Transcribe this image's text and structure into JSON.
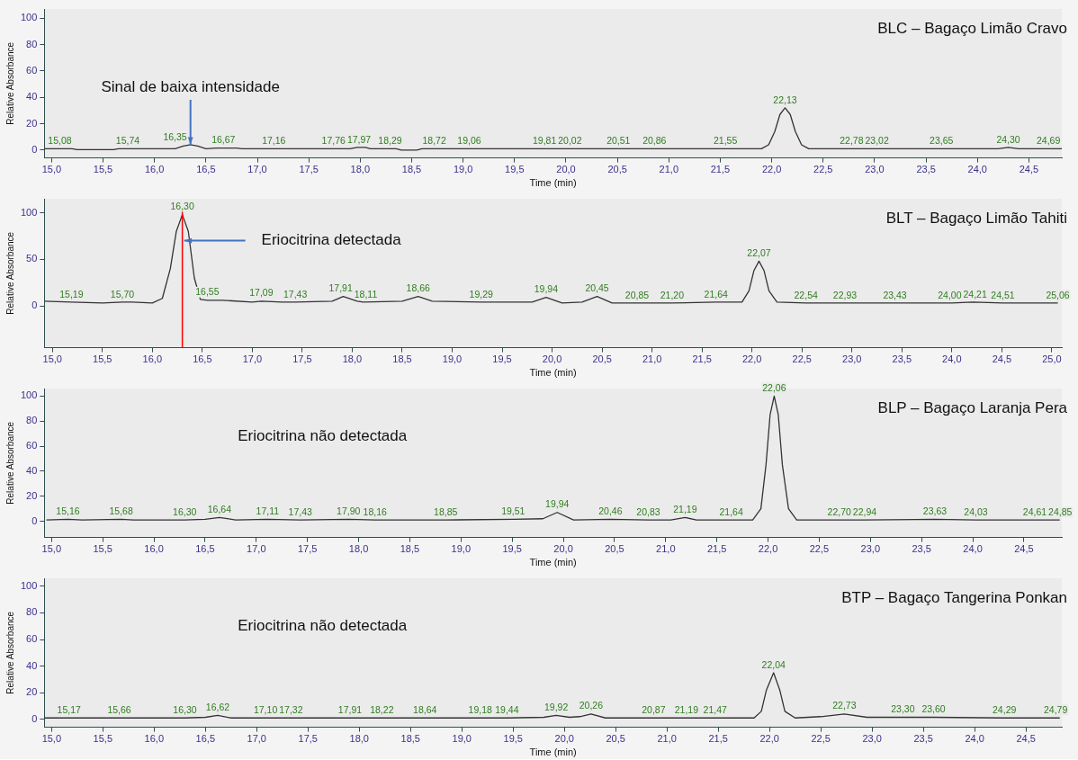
{
  "chart_data": [
    {
      "type": "line",
      "title": "BLC – Bagaço Limão Cravo",
      "xlabel": "Time (min)",
      "ylabel": "Relative Absorbance",
      "grid": false,
      "legend": false,
      "xlim": [
        14.93,
        24.82
      ],
      "xticks": [
        {
          "value": 15,
          "label": "15,0"
        },
        {
          "value": 15.5,
          "label": "15,5"
        },
        {
          "value": 16,
          "label": "16,0"
        },
        {
          "value": 16.5,
          "label": "16,5"
        },
        {
          "value": 17,
          "label": "17,0"
        },
        {
          "value": 17.5,
          "label": "17,5"
        },
        {
          "value": 18,
          "label": "18,0"
        },
        {
          "value": 18.5,
          "label": "18,5"
        },
        {
          "value": 19,
          "label": "19,0"
        },
        {
          "value": 19.5,
          "label": "19,5"
        },
        {
          "value": 20,
          "label": "20,0"
        },
        {
          "value": 20.5,
          "label": "20,5"
        },
        {
          "value": 21,
          "label": "21,0"
        },
        {
          "value": 21.5,
          "label": "21,5"
        },
        {
          "value": 22,
          "label": "22,0"
        },
        {
          "value": 22.5,
          "label": "22,5"
        },
        {
          "value": 23,
          "label": "23,0"
        },
        {
          "value": 23.5,
          "label": "23,5"
        },
        {
          "value": 24,
          "label": "24,0"
        },
        {
          "value": 24.5,
          "label": "24,5"
        }
      ],
      "ylim": [
        -6,
        107
      ],
      "yticks": [
        0,
        20,
        40,
        60,
        80,
        100
      ],
      "annotations": [
        {
          "text": "Sinal de baixa intensidade",
          "x": 16.35,
          "y": 4
        },
        {
          "text": "15,08",
          "x": 15.08,
          "y": 1
        },
        {
          "text": "15,74",
          "x": 15.74,
          "y": 1
        },
        {
          "text": "16,35",
          "x": 16.35,
          "y": 4
        },
        {
          "text": "16,67",
          "x": 16.67,
          "y": 1.5
        },
        {
          "text": "17,16",
          "x": 17.16,
          "y": 1
        },
        {
          "text": "17,76",
          "x": 17.76,
          "y": 1
        },
        {
          "text": "17,97",
          "x": 17.97,
          "y": 2
        },
        {
          "text": "18,29",
          "x": 18.29,
          "y": 1
        },
        {
          "text": "18,72",
          "x": 18.72,
          "y": 1
        },
        {
          "text": "19,06",
          "x": 19.06,
          "y": 1
        },
        {
          "text": "19,81",
          "x": 19.81,
          "y": 1
        },
        {
          "text": "20,02",
          "x": 20.02,
          "y": 1
        },
        {
          "text": "20,51",
          "x": 20.51,
          "y": 1
        },
        {
          "text": "20,86",
          "x": 20.86,
          "y": 1
        },
        {
          "text": "21,55",
          "x": 21.55,
          "y": 1
        },
        {
          "text": "22,13",
          "x": 22.13,
          "y": 32
        },
        {
          "text": "22,78",
          "x": 22.78,
          "y": 1
        },
        {
          "text": "23,02",
          "x": 23.02,
          "y": 1
        },
        {
          "text": "23,65",
          "x": 23.65,
          "y": 1
        },
        {
          "text": "24,30",
          "x": 24.3,
          "y": 2
        },
        {
          "text": "24,69",
          "x": 24.69,
          "y": 1
        }
      ],
      "series": [
        {
          "color": "#333333",
          "x": [
            14.93,
            15.08,
            15.2,
            15.25,
            15.6,
            15.65,
            15.74,
            16.2,
            16.28,
            16.35,
            16.42,
            16.5,
            16.6,
            16.67,
            16.8,
            16.85,
            17.16,
            17.76,
            17.9,
            17.97,
            18.05,
            18.1,
            18.29,
            18.35,
            18.4,
            18.55,
            18.6,
            18.72,
            19.06,
            19.81,
            20.02,
            20.51,
            20.86,
            21.55,
            21.9,
            21.97,
            22.03,
            22.08,
            22.13,
            22.18,
            22.23,
            22.29,
            22.36,
            22.78,
            23.02,
            23.65,
            24.2,
            24.3,
            24.4,
            24.69,
            24.82
          ],
          "values": [
            1,
            1,
            1,
            0.3,
            0.3,
            1,
            1,
            1,
            3,
            4,
            3,
            1,
            1.5,
            1.5,
            1.5,
            1,
            1,
            1,
            1,
            2,
            2,
            1,
            1,
            1,
            0,
            0,
            1,
            1,
            1,
            1,
            1,
            1,
            1,
            1,
            1,
            4,
            14,
            27,
            32,
            27,
            14,
            4,
            1,
            1,
            1,
            1,
            1,
            2,
            1,
            1,
            1
          ]
        }
      ]
    },
    {
      "type": "line",
      "title": "BLT – Bagaço Limão Tahiti",
      "xlabel": "Time (min)",
      "ylabel": "Relative Absorbance",
      "grid": false,
      "legend": false,
      "xlim": [
        14.92,
        25.1
      ],
      "xticks": [
        {
          "value": 15,
          "label": "15,0"
        },
        {
          "value": 15.5,
          "label": "15,5"
        },
        {
          "value": 16,
          "label": "16,0"
        },
        {
          "value": 16.5,
          "label": "16,5"
        },
        {
          "value": 17,
          "label": "17,0"
        },
        {
          "value": 17.5,
          "label": "17,5"
        },
        {
          "value": 18,
          "label": "18,0"
        },
        {
          "value": 18.5,
          "label": "18,5"
        },
        {
          "value": 19,
          "label": "19,0"
        },
        {
          "value": 19.5,
          "label": "19,5"
        },
        {
          "value": 20,
          "label": "20,0"
        },
        {
          "value": 20.5,
          "label": "20,5"
        },
        {
          "value": 21,
          "label": "21,0"
        },
        {
          "value": 21.5,
          "label": "21,5"
        },
        {
          "value": 22,
          "label": "22,0"
        },
        {
          "value": 22.5,
          "label": "22,5"
        },
        {
          "value": 23,
          "label": "23,0"
        },
        {
          "value": 23.5,
          "label": "23,5"
        },
        {
          "value": 24,
          "label": "24,0"
        },
        {
          "value": 24.5,
          "label": "24,5"
        },
        {
          "value": 25,
          "label": "25,0"
        }
      ],
      "ylim": [
        -45,
        115
      ],
      "yticks": [
        0,
        50,
        100
      ],
      "ref_lines": [
        {
          "axis": "x",
          "value": 16.3,
          "color": "#ff0000"
        }
      ],
      "annotations": [
        {
          "text": "Eriocitrina detectada",
          "x": 16.3,
          "y": 70
        },
        {
          "text": "15,19",
          "x": 15.19,
          "y": 4
        },
        {
          "text": "15,70",
          "x": 15.7,
          "y": 4
        },
        {
          "text": "16,30",
          "x": 16.3,
          "y": 98
        },
        {
          "text": "16,55",
          "x": 16.55,
          "y": 6
        },
        {
          "text": "17,09",
          "x": 17.09,
          "y": 5
        },
        {
          "text": "17,43",
          "x": 17.43,
          "y": 4
        },
        {
          "text": "17,91",
          "x": 17.91,
          "y": 10
        },
        {
          "text": "18,11",
          "x": 18.11,
          "y": 4
        },
        {
          "text": "18,66",
          "x": 18.66,
          "y": 10
        },
        {
          "text": "19,29",
          "x": 19.29,
          "y": 4
        },
        {
          "text": "19,94",
          "x": 19.94,
          "y": 9
        },
        {
          "text": "20,45",
          "x": 20.45,
          "y": 10
        },
        {
          "text": "20,85",
          "x": 20.85,
          "y": 3
        },
        {
          "text": "21,20",
          "x": 21.2,
          "y": 3
        },
        {
          "text": "21,64",
          "x": 21.64,
          "y": 4
        },
        {
          "text": "22,07",
          "x": 22.07,
          "y": 48
        },
        {
          "text": "22,54",
          "x": 22.54,
          "y": 3
        },
        {
          "text": "22,93",
          "x": 22.93,
          "y": 3
        },
        {
          "text": "23,43",
          "x": 23.43,
          "y": 3
        },
        {
          "text": "24,00",
          "x": 24.0,
          "y": 3
        },
        {
          "text": "24,21",
          "x": 24.21,
          "y": 4
        },
        {
          "text": "24,51",
          "x": 24.51,
          "y": 3
        },
        {
          "text": "25,06",
          "x": 25.06,
          "y": 3
        }
      ],
      "series": [
        {
          "color": "#333333",
          "x": [
            14.92,
            15.19,
            15.5,
            15.7,
            15.8,
            16.0,
            16.1,
            16.18,
            16.24,
            16.3,
            16.36,
            16.42,
            16.48,
            16.55,
            16.7,
            17.0,
            17.09,
            17.3,
            17.43,
            17.8,
            17.91,
            18.05,
            18.11,
            18.5,
            18.66,
            18.8,
            19.29,
            19.8,
            19.94,
            20.1,
            20.3,
            20.45,
            20.6,
            20.85,
            21.2,
            21.64,
            21.9,
            21.97,
            22.02,
            22.07,
            22.12,
            22.17,
            22.25,
            22.54,
            22.93,
            23.43,
            24.0,
            24.21,
            24.51,
            25.06
          ],
          "values": [
            5,
            4,
            3,
            4,
            4,
            3,
            8,
            40,
            80,
            98,
            80,
            30,
            7,
            6,
            6,
            4,
            5,
            4,
            4,
            5,
            10,
            5,
            4,
            5,
            10,
            5,
            4,
            4,
            9,
            3,
            4,
            10,
            3,
            3,
            3,
            4,
            4,
            16,
            38,
            48,
            38,
            16,
            4,
            3,
            3,
            3,
            3,
            4,
            3,
            3
          ]
        }
      ]
    },
    {
      "type": "line",
      "title": "BLP – Bagaço Laranja Pera",
      "xlabel": "Time (min)",
      "ylabel": "Relative Absorbance",
      "grid": false,
      "legend": false,
      "xlim": [
        14.93,
        24.87
      ],
      "xticks": [
        {
          "value": 15,
          "label": "15,0"
        },
        {
          "value": 15.5,
          "label": "15,5"
        },
        {
          "value": 16,
          "label": "16,0"
        },
        {
          "value": 16.5,
          "label": "16,5"
        },
        {
          "value": 17,
          "label": "17,0"
        },
        {
          "value": 17.5,
          "label": "17,5"
        },
        {
          "value": 18,
          "label": "18,0"
        },
        {
          "value": 18.5,
          "label": "18,5"
        },
        {
          "value": 19,
          "label": "19,0"
        },
        {
          "value": 19.5,
          "label": "19,5"
        },
        {
          "value": 20,
          "label": "20,0"
        },
        {
          "value": 20.5,
          "label": "20,5"
        },
        {
          "value": 21,
          "label": "21,0"
        },
        {
          "value": 21.5,
          "label": "21,5"
        },
        {
          "value": 22,
          "label": "22,0"
        },
        {
          "value": 22.5,
          "label": "22,5"
        },
        {
          "value": 23,
          "label": "23,0"
        },
        {
          "value": 23.5,
          "label": "23,5"
        },
        {
          "value": 24,
          "label": "24,0"
        },
        {
          "value": 24.5,
          "label": "24,5"
        }
      ],
      "ylim": [
        -13,
        106
      ],
      "yticks": [
        0,
        20,
        40,
        60,
        80,
        100
      ],
      "annotations": [
        "Eriocitrina não detectada",
        {
          "text": "15,16",
          "x": 15.16,
          "y": 1.5
        },
        {
          "text": "15,68",
          "x": 15.68,
          "y": 1.5
        },
        {
          "text": "16,30",
          "x": 16.3,
          "y": 1
        },
        {
          "text": "16,64",
          "x": 16.64,
          "y": 3
        },
        {
          "text": "17,11",
          "x": 17.11,
          "y": 1.5
        },
        {
          "text": "17,43",
          "x": 17.43,
          "y": 1
        },
        {
          "text": "17,90",
          "x": 17.9,
          "y": 1.5
        },
        {
          "text": "18,16",
          "x": 18.16,
          "y": 1
        },
        {
          "text": "18,85",
          "x": 18.85,
          "y": 1
        },
        {
          "text": "19,51",
          "x": 19.51,
          "y": 1.5
        },
        {
          "text": "19,94",
          "x": 19.94,
          "y": 7
        },
        {
          "text": "20,46",
          "x": 20.46,
          "y": 1.5
        },
        {
          "text": "20,83",
          "x": 20.83,
          "y": 1
        },
        {
          "text": "21,19",
          "x": 21.19,
          "y": 3
        },
        {
          "text": "21,64",
          "x": 21.64,
          "y": 1
        },
        {
          "text": "22,06",
          "x": 22.06,
          "y": 100
        },
        {
          "text": "22,70",
          "x": 22.7,
          "y": 1
        },
        {
          "text": "22,94",
          "x": 22.94,
          "y": 1
        },
        {
          "text": "23,63",
          "x": 23.63,
          "y": 1.5
        },
        {
          "text": "24,03",
          "x": 24.03,
          "y": 1
        },
        {
          "text": "24,61",
          "x": 24.61,
          "y": 1
        },
        {
          "text": "24,85",
          "x": 24.85,
          "y": 1
        }
      ],
      "series": [
        {
          "color": "#333333",
          "x": [
            14.95,
            15.16,
            15.3,
            15.68,
            15.8,
            16.3,
            16.5,
            16.64,
            16.8,
            17.11,
            17.43,
            17.9,
            18.16,
            18.85,
            19.51,
            19.8,
            19.94,
            20.1,
            20.46,
            20.83,
            21.05,
            21.19,
            21.3,
            21.64,
            21.85,
            21.93,
            21.98,
            22.02,
            22.06,
            22.1,
            22.14,
            22.2,
            22.28,
            22.7,
            22.94,
            23.63,
            24.03,
            24.61,
            24.85
          ],
          "values": [
            1,
            1.5,
            1,
            1.5,
            1,
            1,
            1.5,
            3,
            1,
            1.5,
            1,
            1.5,
            1,
            1,
            1.5,
            2,
            7,
            1,
            1.5,
            1,
            1,
            3,
            1,
            1,
            1,
            10,
            45,
            85,
            100,
            85,
            45,
            10,
            1,
            1,
            1,
            1.5,
            1,
            1,
            1
          ]
        }
      ]
    },
    {
      "type": "line",
      "title": "BTP – Bagaço Tangerina Ponkan",
      "xlabel": "Time (min)",
      "ylabel": "Relative Absorbance",
      "grid": false,
      "legend": false,
      "xlim": [
        14.93,
        24.85
      ],
      "xticks": [
        {
          "value": 15,
          "label": "15,0"
        },
        {
          "value": 15.5,
          "label": "15,5"
        },
        {
          "value": 16,
          "label": "16,0"
        },
        {
          "value": 16.5,
          "label": "16,5"
        },
        {
          "value": 17,
          "label": "17,0"
        },
        {
          "value": 17.5,
          "label": "17,5"
        },
        {
          "value": 18,
          "label": "18,0"
        },
        {
          "value": 18.5,
          "label": "18,5"
        },
        {
          "value": 19,
          "label": "19,0"
        },
        {
          "value": 19.5,
          "label": "19,5"
        },
        {
          "value": 20,
          "label": "20,0"
        },
        {
          "value": 20.5,
          "label": "20,5"
        },
        {
          "value": 21,
          "label": "21,0"
        },
        {
          "value": 21.5,
          "label": "21,5"
        },
        {
          "value": 22,
          "label": "22,0"
        },
        {
          "value": 22.5,
          "label": "22,5"
        },
        {
          "value": 23,
          "label": "23,0"
        },
        {
          "value": 23.5,
          "label": "23,5"
        },
        {
          "value": 24,
          "label": "24,0"
        },
        {
          "value": 24.5,
          "label": "24,5"
        }
      ],
      "ylim": [
        -6,
        106
      ],
      "yticks": [
        0,
        20,
        40,
        60,
        80,
        100
      ],
      "annotations": [
        "Eriocitrina não detectada",
        {
          "text": "15,17",
          "x": 15.17,
          "y": 1
        },
        {
          "text": "15,66",
          "x": 15.66,
          "y": 1
        },
        {
          "text": "16,30",
          "x": 16.3,
          "y": 1
        },
        {
          "text": "16,62",
          "x": 16.62,
          "y": 3
        },
        {
          "text": "17,10",
          "x": 17.1,
          "y": 1
        },
        {
          "text": "17,32",
          "x": 17.32,
          "y": 1
        },
        {
          "text": "17,91",
          "x": 17.91,
          "y": 1
        },
        {
          "text": "18,22",
          "x": 18.22,
          "y": 1
        },
        {
          "text": "18,64",
          "x": 18.64,
          "y": 1
        },
        {
          "text": "19,18",
          "x": 19.18,
          "y": 1
        },
        {
          "text": "19,44",
          "x": 19.44,
          "y": 1
        },
        {
          "text": "19,92",
          "x": 19.92,
          "y": 3
        },
        {
          "text": "20,26",
          "x": 20.26,
          "y": 4
        },
        {
          "text": "20,87",
          "x": 20.87,
          "y": 1
        },
        {
          "text": "21,19",
          "x": 21.19,
          "y": 1
        },
        {
          "text": "21,47",
          "x": 21.47,
          "y": 1
        },
        {
          "text": "22,04",
          "x": 22.04,
          "y": 35
        },
        {
          "text": "22,73",
          "x": 22.73,
          "y": 4
        },
        {
          "text": "23,30",
          "x": 23.3,
          "y": 1.5
        },
        {
          "text": "23,60",
          "x": 23.6,
          "y": 1.5
        },
        {
          "text": "24,29",
          "x": 24.29,
          "y": 1
        },
        {
          "text": "24,79",
          "x": 24.79,
          "y": 1
        }
      ],
      "series": [
        {
          "color": "#333333",
          "x": [
            14.93,
            15.17,
            15.66,
            16.3,
            16.5,
            16.62,
            16.75,
            17.1,
            17.32,
            17.91,
            18.22,
            18.64,
            19.18,
            19.44,
            19.8,
            19.92,
            20.05,
            20.15,
            20.26,
            20.4,
            20.87,
            21.19,
            21.47,
            21.85,
            21.92,
            21.97,
            22.04,
            22.1,
            22.15,
            22.25,
            22.5,
            22.73,
            22.95,
            23.3,
            23.6,
            24.29,
            24.79,
            24.83
          ],
          "values": [
            1,
            1,
            1,
            1,
            1.5,
            3,
            1,
            1,
            1,
            1,
            1,
            1,
            1,
            1,
            1.5,
            3,
            1.5,
            2,
            4,
            1,
            1,
            1,
            1,
            1,
            6,
            22,
            35,
            22,
            6,
            1,
            2,
            4,
            1.5,
            1.5,
            1.5,
            1,
            1,
            1
          ]
        }
      ]
    }
  ]
}
